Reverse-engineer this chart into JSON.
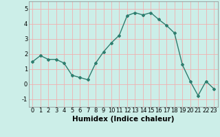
{
  "x": [
    0,
    1,
    2,
    3,
    4,
    5,
    6,
    7,
    8,
    9,
    10,
    11,
    12,
    13,
    14,
    15,
    16,
    17,
    18,
    19,
    20,
    21,
    22,
    23
  ],
  "y": [
    1.5,
    1.9,
    1.65,
    1.65,
    1.4,
    0.6,
    0.45,
    0.3,
    1.4,
    2.15,
    2.75,
    3.25,
    4.55,
    4.75,
    4.6,
    4.75,
    4.3,
    3.9,
    3.4,
    1.3,
    0.2,
    -0.75,
    0.2,
    -0.3
  ],
  "line_color": "#2e7d6e",
  "marker": "D",
  "markersize": 2,
  "linewidth": 1.0,
  "xlabel": "Humidex (Indice chaleur)",
  "xlim": [
    -0.5,
    23.5
  ],
  "ylim": [
    -1.5,
    5.5
  ],
  "yticks": [
    -1,
    0,
    1,
    2,
    3,
    4,
    5
  ],
  "xticks": [
    0,
    1,
    2,
    3,
    4,
    5,
    6,
    7,
    8,
    9,
    10,
    11,
    12,
    13,
    14,
    15,
    16,
    17,
    18,
    19,
    20,
    21,
    22,
    23
  ],
  "bg_color": "#cceee8",
  "grid_color": "#f0b0b0",
  "tick_fontsize": 6,
  "xlabel_fontsize": 7.5
}
